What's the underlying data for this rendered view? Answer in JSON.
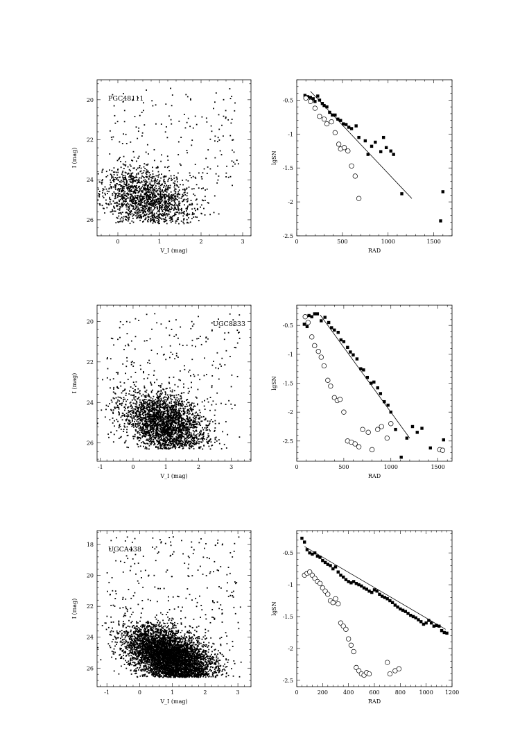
{
  "chart_data": [
    {
      "type": "scatter",
      "id": "cmd1",
      "title": "PGC48111",
      "xlabel": "V_I (mag)",
      "ylabel": "I (mag)",
      "xlim": [
        -0.5,
        3.2
      ],
      "ylim": [
        19.0,
        26.8
      ],
      "y_inverted": true,
      "xticks": [
        0,
        1,
        2,
        3
      ],
      "yticks": [
        20,
        22,
        24,
        26
      ],
      "xtick_labels": [
        "0",
        "1",
        "2",
        "3"
      ],
      "ytick_labels": [
        "20",
        "22",
        "24",
        "26"
      ],
      "grid": false,
      "cloud": {
        "n": 1600,
        "cx": 0.7,
        "cy": 24.9,
        "sx": 0.55,
        "sy": 0.75,
        "slope": -0.35,
        "faint_limit": 26.2
      },
      "sparse_n": 180
    },
    {
      "type": "scatter",
      "id": "prof1",
      "xlabel": "RAD",
      "ylabel": "lgSN",
      "xlim": [
        0,
        1700
      ],
      "ylim": [
        -2.5,
        -0.2
      ],
      "xticks": [
        0,
        500,
        1000,
        1500
      ],
      "yticks": [
        -0.5,
        -1,
        -1.5,
        -2,
        -2.5
      ],
      "xtick_labels": [
        "0",
        "500",
        "1000",
        "1500"
      ],
      "ytick_labels": [
        "-0.5",
        "-1",
        "-1.5",
        "-2",
        "-2.5"
      ],
      "grid": false,
      "series": [
        {
          "marker": "filled-square",
          "x": [
            90,
            120,
            150,
            180,
            200,
            230,
            250,
            280,
            300,
            330,
            360,
            390,
            420,
            450,
            480,
            510,
            540,
            570,
            600,
            650,
            680,
            750,
            780,
            820,
            860,
            920,
            950,
            980,
            1030,
            1060,
            1150,
            1575,
            1600
          ],
          "y": [
            -0.43,
            -0.45,
            -0.46,
            -0.48,
            -0.52,
            -0.44,
            -0.5,
            -0.55,
            -0.58,
            -0.6,
            -0.68,
            -0.72,
            -0.72,
            -0.78,
            -0.8,
            -0.85,
            -0.86,
            -0.9,
            -0.92,
            -0.88,
            -1.05,
            -1.1,
            -1.3,
            -1.18,
            -1.12,
            -1.26,
            -1.05,
            -1.2,
            -1.25,
            -1.3,
            -1.88,
            -2.28,
            -1.85
          ]
        },
        {
          "marker": "open-circle",
          "x": [
            100,
            150,
            200,
            250,
            300,
            330,
            380,
            420,
            460,
            480,
            520,
            560,
            600,
            640,
            680
          ],
          "y": [
            -0.47,
            -0.52,
            -0.62,
            -0.74,
            -0.78,
            -0.85,
            -0.82,
            -0.98,
            -1.15,
            -1.22,
            -1.2,
            -1.25,
            -1.47,
            -1.62,
            -1.95
          ]
        }
      ],
      "fit_line": {
        "x": [
          150,
          1260
        ],
        "y": [
          -0.37,
          -1.95
        ]
      }
    },
    {
      "type": "scatter",
      "id": "cmd2",
      "title": "UGC8833",
      "xlabel": "V_I (mag)",
      "ylabel": "I (mag)",
      "xlim": [
        -1.1,
        3.6
      ],
      "ylim": [
        19.2,
        26.9
      ],
      "y_inverted": true,
      "xticks": [
        -1,
        0,
        1,
        2,
        3
      ],
      "yticks": [
        20,
        22,
        24,
        26
      ],
      "xtick_labels": [
        "-1",
        "0",
        "1",
        "2",
        "3"
      ],
      "ytick_labels": [
        "20",
        "22",
        "24",
        "26"
      ],
      "grid": false,
      "cloud": {
        "n": 2600,
        "cx": 0.95,
        "cy": 25.0,
        "sx": 0.6,
        "sy": 0.75,
        "slope": -0.45,
        "faint_limit": 26.3
      },
      "sparse_n": 220
    },
    {
      "type": "scatter",
      "id": "prof2",
      "xlabel": "RAD",
      "ylabel": "lgSN",
      "xlim": [
        0,
        1650
      ],
      "ylim": [
        -2.85,
        -0.15
      ],
      "xticks": [
        0,
        500,
        1000,
        1500
      ],
      "yticks": [
        -0.5,
        -1,
        -1.5,
        -2,
        -2.5
      ],
      "xtick_labels": [
        "0",
        "500",
        "1000",
        "1500"
      ],
      "ytick_labels": [
        "-0.5",
        "-1",
        "-1.5",
        "-2",
        "-2.5"
      ],
      "grid": false,
      "series": [
        {
          "marker": "filled-square",
          "x": [
            80,
            110,
            130,
            160,
            190,
            220,
            260,
            300,
            340,
            370,
            400,
            440,
            470,
            500,
            540,
            570,
            600,
            640,
            680,
            710,
            750,
            790,
            820,
            860,
            890,
            930,
            970,
            1000,
            1050,
            1110,
            1170,
            1230,
            1280,
            1330,
            1420,
            1560
          ],
          "y": [
            -0.48,
            -0.52,
            -0.33,
            -0.35,
            -0.3,
            -0.3,
            -0.42,
            -0.36,
            -0.45,
            -0.54,
            -0.58,
            -0.62,
            -0.75,
            -0.78,
            -0.88,
            -0.96,
            -1.01,
            -1.08,
            -1.25,
            -1.27,
            -1.4,
            -1.5,
            -1.48,
            -1.58,
            -1.68,
            -1.82,
            -1.88,
            -2.0,
            -2.3,
            -2.78,
            -2.45,
            -2.25,
            -2.35,
            -2.28,
            -2.62,
            -2.48
          ]
        },
        {
          "marker": "open-circle",
          "x": [
            90,
            120,
            160,
            190,
            230,
            260,
            290,
            330,
            360,
            400,
            430,
            460,
            500,
            540,
            580,
            620,
            660,
            700,
            760,
            800,
            860,
            900,
            960,
            1000,
            1520,
            1550
          ],
          "y": [
            -0.35,
            -0.45,
            -0.7,
            -0.85,
            -0.95,
            -1.05,
            -1.2,
            -1.45,
            -1.55,
            -1.75,
            -1.8,
            -1.78,
            -2.0,
            -2.5,
            -2.52,
            -2.55,
            -2.6,
            -2.3,
            -2.35,
            -2.65,
            -2.3,
            -2.25,
            -2.45,
            -2.2,
            -2.65,
            -2.66
          ]
        }
      ],
      "fit_line": {
        "x": [
          250,
          1200
        ],
        "y": [
          -0.32,
          -2.45
        ]
      }
    },
    {
      "type": "scatter",
      "id": "cmd3",
      "title": "UGCA438",
      "xlabel": "V_I (mag)",
      "ylabel": "I (mag)",
      "xlim": [
        -1.3,
        3.4
      ],
      "ylim": [
        17.1,
        27.2
      ],
      "y_inverted": true,
      "xticks": [
        -1,
        0,
        1,
        2,
        3
      ],
      "yticks": [
        18,
        20,
        22,
        24,
        26
      ],
      "xtick_labels": [
        "-1",
        "0",
        "1",
        "2",
        "3"
      ],
      "ytick_labels": [
        "18",
        "20",
        "22",
        "24",
        "26"
      ],
      "grid": false,
      "cloud": {
        "n": 5200,
        "cx": 0.9,
        "cy": 25.2,
        "sx": 0.6,
        "sy": 0.9,
        "slope": -0.55,
        "faint_limit": 26.6
      },
      "sparse_n": 260
    },
    {
      "type": "scatter",
      "id": "prof3",
      "xlabel": "RAD",
      "ylabel": "lgSN",
      "xlim": [
        0,
        1200
      ],
      "ylim": [
        -2.6,
        -0.15
      ],
      "xticks": [
        0,
        200,
        400,
        600,
        800,
        1000,
        1200
      ],
      "yticks": [
        -0.5,
        -1,
        -1.5,
        -2,
        -2.5
      ],
      "xtick_labels": [
        "0",
        "200",
        "400",
        "600",
        "800",
        "1000",
        "1200"
      ],
      "ytick_labels": [
        "-0.5",
        "-1",
        "-1.5",
        "-2",
        "-2.5"
      ],
      "grid": false,
      "series": [
        {
          "marker": "filled-square",
          "x": [
            40,
            60,
            80,
            100,
            120,
            140,
            160,
            180,
            200,
            220,
            240,
            260,
            280,
            300,
            320,
            340,
            360,
            380,
            400,
            420,
            440,
            460,
            480,
            500,
            520,
            540,
            560,
            580,
            600,
            620,
            640,
            660,
            680,
            700,
            720,
            740,
            760,
            780,
            800,
            820,
            840,
            860,
            880,
            900,
            920,
            940,
            960,
            980,
            1000,
            1020,
            1040,
            1060,
            1080,
            1100,
            1120,
            1140,
            1160
          ],
          "y": [
            -0.27,
            -0.33,
            -0.45,
            -0.5,
            -0.52,
            -0.5,
            -0.55,
            -0.57,
            -0.62,
            -0.65,
            -0.68,
            -0.7,
            -0.75,
            -0.72,
            -0.8,
            -0.85,
            -0.88,
            -0.92,
            -0.95,
            -0.97,
            -0.95,
            -0.98,
            -1.0,
            -1.02,
            -1.05,
            -1.07,
            -1.1,
            -1.12,
            -1.08,
            -1.1,
            -1.15,
            -1.18,
            -1.2,
            -1.22,
            -1.25,
            -1.28,
            -1.32,
            -1.35,
            -1.38,
            -1.4,
            -1.42,
            -1.45,
            -1.48,
            -1.5,
            -1.52,
            -1.55,
            -1.58,
            -1.62,
            -1.6,
            -1.56,
            -1.6,
            -1.65,
            -1.64,
            -1.65,
            -1.72,
            -1.75,
            -1.76
          ]
        },
        {
          "marker": "open-circle",
          "x": [
            60,
            80,
            100,
            120,
            140,
            160,
            180,
            200,
            220,
            240,
            260,
            280,
            300,
            320,
            340,
            360,
            380,
            400,
            420,
            440,
            460,
            480,
            500,
            520,
            540,
            560,
            700,
            720,
            760,
            790
          ],
          "y": [
            -0.85,
            -0.82,
            -0.8,
            -0.85,
            -0.9,
            -0.95,
            -0.98,
            -1.05,
            -1.1,
            -1.15,
            -1.25,
            -1.28,
            -1.22,
            -1.3,
            -1.6,
            -1.65,
            -1.7,
            -1.85,
            -1.95,
            -2.05,
            -2.3,
            -2.35,
            -2.4,
            -2.42,
            -2.38,
            -2.4,
            -2.22,
            -2.4,
            -2.35,
            -2.32
          ]
        }
      ],
      "fit_line": {
        "x": [
          60,
          1150
        ],
        "y": [
          -0.4,
          -1.7
        ]
      }
    }
  ]
}
